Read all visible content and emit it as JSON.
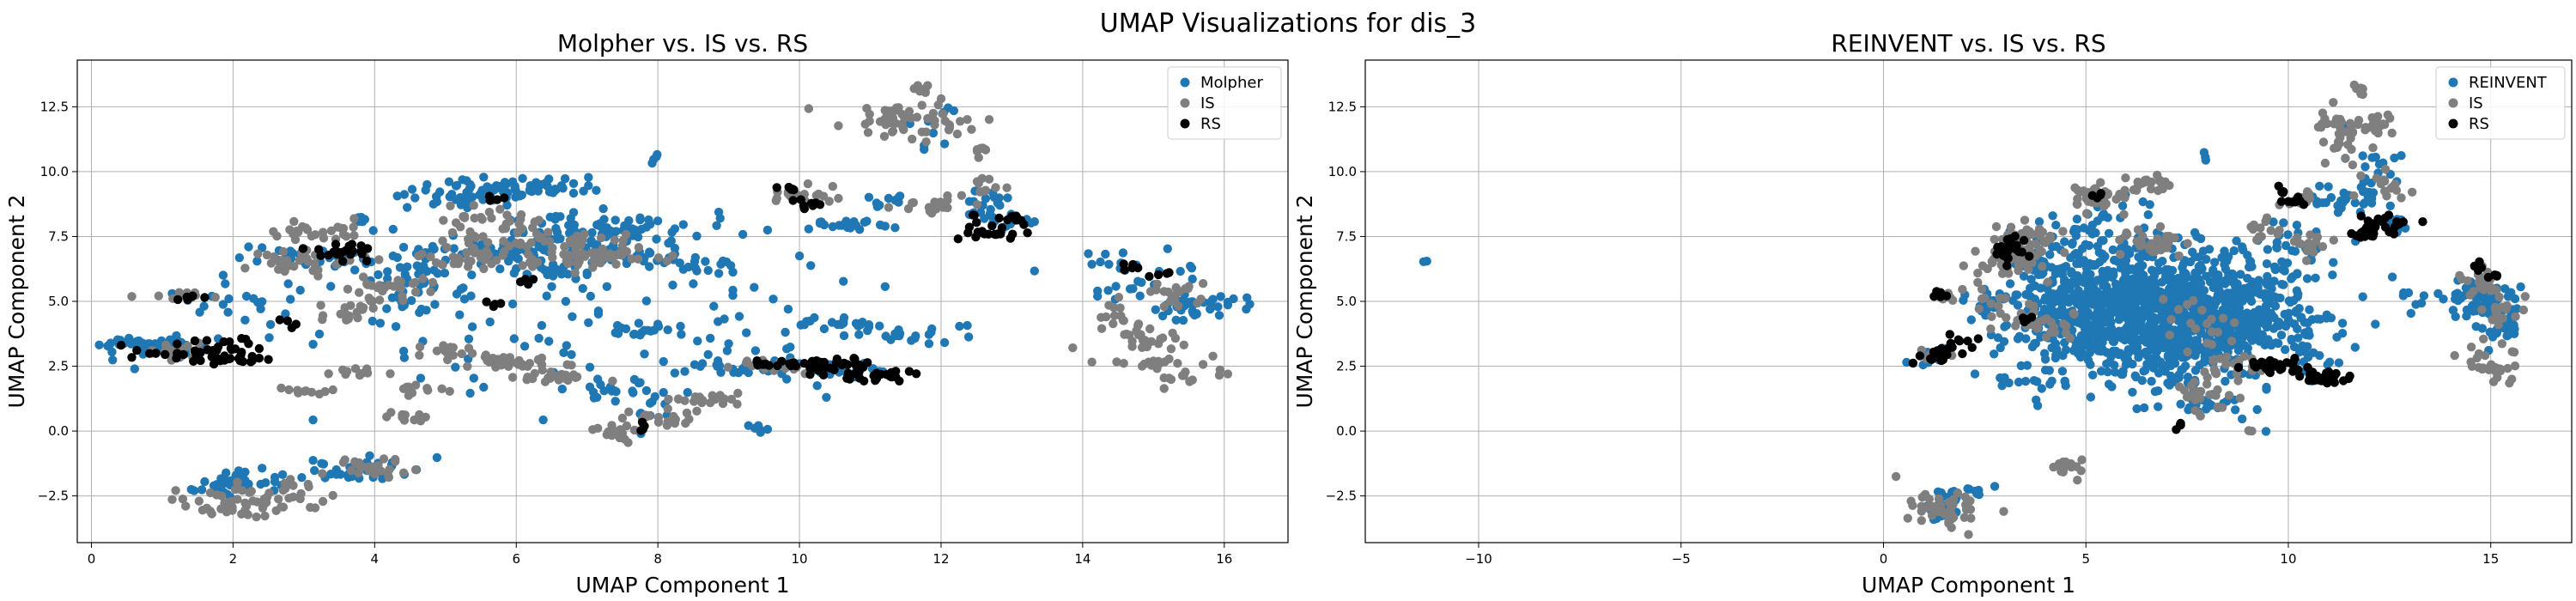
{
  "figure": {
    "title": "UMAP Visualizations for dis_3"
  },
  "chart_data": [
    {
      "type": "scatter",
      "title": "Molpher vs. IS vs. RS",
      "xlabel": "UMAP Component 1",
      "ylabel": "UMAP Component 2",
      "xlim": [
        -0.2,
        16.9
      ],
      "ylim": [
        -4.3,
        14.3
      ],
      "xticks": [
        0,
        2,
        4,
        6,
        8,
        10,
        12,
        14,
        16
      ],
      "yticks": [
        -2.5,
        0.0,
        2.5,
        5.0,
        7.5,
        10.0,
        12.5
      ],
      "grid": true,
      "legend": "top-right",
      "series": [
        {
          "name": "Molpher",
          "color": "#1f77b4",
          "points": []
        },
        {
          "name": "IS",
          "color": "#7f7f7f",
          "points": []
        },
        {
          "name": "RS",
          "color": "#000000",
          "points": []
        }
      ],
      "clusters": {
        "Molpher": [
          [
            0.9,
            3.3,
            0.35,
            0.18,
            60
          ],
          [
            1.9,
            -2.1,
            0.3,
            0.25,
            40
          ],
          [
            3.0,
            6.7,
            0.5,
            0.2,
            35
          ],
          [
            3.8,
            -1.5,
            0.4,
            0.2,
            40
          ],
          [
            5.5,
            9.2,
            0.6,
            0.25,
            60
          ],
          [
            6.3,
            9.4,
            0.4,
            0.2,
            30
          ],
          [
            6.0,
            7.0,
            0.6,
            0.25,
            60
          ],
          [
            7.1,
            7.8,
            0.7,
            0.3,
            70
          ],
          [
            7.6,
            6.9,
            0.4,
            0.2,
            25
          ],
          [
            6.5,
            6.2,
            0.3,
            0.2,
            20
          ],
          [
            4.5,
            6.5,
            0.3,
            0.3,
            20
          ],
          [
            8.0,
            10.5,
            0.05,
            0.1,
            4
          ],
          [
            8.4,
            6.4,
            0.3,
            0.15,
            18
          ],
          [
            7.8,
            3.8,
            0.3,
            0.2,
            15
          ],
          [
            7.4,
            1.8,
            0.2,
            0.4,
            15
          ],
          [
            8.0,
            1.1,
            0.2,
            0.4,
            12
          ],
          [
            9.0,
            2.4,
            0.4,
            0.15,
            20
          ],
          [
            9.4,
            0.1,
            0.1,
            0.1,
            6
          ],
          [
            10.6,
            2.4,
            0.4,
            0.15,
            25
          ],
          [
            10.5,
            4.1,
            0.3,
            0.1,
            15
          ],
          [
            10.7,
            7.9,
            0.4,
            0.15,
            20
          ],
          [
            11.3,
            8.9,
            0.2,
            0.15,
            10
          ],
          [
            11.4,
            3.8,
            0.4,
            0.2,
            25
          ],
          [
            12.6,
            8.9,
            0.2,
            0.3,
            14
          ],
          [
            12.9,
            8.1,
            0.3,
            0.2,
            20
          ],
          [
            14.7,
            5.8,
            0.5,
            0.5,
            30
          ],
          [
            15.5,
            4.7,
            0.3,
            0.3,
            25
          ],
          [
            16.0,
            5.0,
            0.15,
            0.15,
            10
          ],
          [
            5.0,
            4.5,
            2.0,
            2.0,
            90
          ],
          [
            9.2,
            4.0,
            1.2,
            1.5,
            45
          ],
          [
            2.2,
            4.9,
            0.6,
            0.2,
            12
          ],
          [
            3.9,
            8.0,
            0.2,
            0.2,
            8
          ],
          [
            4.7,
            5.5,
            0.5,
            0.5,
            25
          ],
          [
            11.9,
            11.5,
            0.2,
            0.6,
            10
          ]
        ],
        "IS": [
          [
            1.1,
            3.1,
            0.2,
            0.15,
            20
          ],
          [
            1.3,
            5.2,
            0.25,
            0.1,
            10
          ],
          [
            2.2,
            -2.8,
            0.5,
            0.3,
            50
          ],
          [
            3.0,
            6.5,
            0.4,
            0.2,
            35
          ],
          [
            3.2,
            7.7,
            0.4,
            0.2,
            25
          ],
          [
            3.6,
            4.6,
            0.3,
            0.2,
            15
          ],
          [
            4.0,
            -1.4,
            0.4,
            0.2,
            25
          ],
          [
            4.2,
            5.5,
            0.4,
            0.3,
            30
          ],
          [
            4.4,
            0.6,
            0.2,
            0.1,
            10
          ],
          [
            4.6,
            1.6,
            0.2,
            0.1,
            10
          ],
          [
            3.7,
            2.3,
            0.2,
            0.1,
            10
          ],
          [
            3.1,
            1.5,
            0.3,
            0.1,
            10
          ],
          [
            5.0,
            3.0,
            0.3,
            0.15,
            15
          ],
          [
            5.4,
            6.8,
            0.4,
            0.3,
            40
          ],
          [
            5.7,
            8.1,
            0.4,
            0.25,
            30
          ],
          [
            6.1,
            2.6,
            0.4,
            0.15,
            30
          ],
          [
            6.6,
            2.1,
            0.3,
            0.15,
            25
          ],
          [
            6.8,
            7.1,
            0.6,
            0.3,
            50
          ],
          [
            7.1,
            6.6,
            0.4,
            0.2,
            30
          ],
          [
            7.5,
            -0.1,
            0.2,
            0.2,
            15
          ],
          [
            8.1,
            0.5,
            0.3,
            0.15,
            20
          ],
          [
            8.6,
            1.2,
            0.3,
            0.15,
            20
          ],
          [
            9.7,
            2.6,
            0.3,
            0.15,
            20
          ],
          [
            10.1,
            9.1,
            0.3,
            0.2,
            20
          ],
          [
            11.4,
            12.0,
            0.4,
            0.3,
            45
          ],
          [
            11.8,
            13.2,
            0.1,
            0.1,
            6
          ],
          [
            12.2,
            11.9,
            0.2,
            0.15,
            10
          ],
          [
            11.8,
            8.7,
            0.3,
            0.2,
            20
          ],
          [
            12.6,
            10.8,
            0.15,
            0.15,
            8
          ],
          [
            12.6,
            9.4,
            0.2,
            0.2,
            10
          ],
          [
            14.5,
            4.5,
            0.2,
            0.3,
            15
          ],
          [
            14.8,
            3.5,
            0.3,
            0.3,
            20
          ],
          [
            15.3,
            5.3,
            0.3,
            0.3,
            20
          ],
          [
            15.4,
            2.2,
            0.3,
            0.4,
            20
          ],
          [
            14.9,
            2.6,
            0.2,
            0.1,
            12
          ],
          [
            2.6,
            -2.2,
            0.3,
            0.2,
            15
          ]
        ],
        "RS": [
          [
            1.2,
            3.0,
            0.3,
            0.15,
            20
          ],
          [
            1.4,
            5.2,
            0.15,
            0.1,
            6
          ],
          [
            1.8,
            3.3,
            0.25,
            0.2,
            15
          ],
          [
            2.0,
            2.8,
            0.3,
            0.1,
            20
          ],
          [
            2.8,
            4.2,
            0.1,
            0.1,
            4
          ],
          [
            3.6,
            6.9,
            0.2,
            0.2,
            25
          ],
          [
            5.8,
            9.1,
            0.1,
            0.1,
            4
          ],
          [
            6.2,
            5.8,
            0.1,
            0.1,
            4
          ],
          [
            5.7,
            4.9,
            0.1,
            0.1,
            4
          ],
          [
            7.8,
            0.2,
            0.1,
            0.1,
            4
          ],
          [
            9.5,
            2.6,
            0.1,
            0.1,
            6
          ],
          [
            10.2,
            2.6,
            0.4,
            0.12,
            35
          ],
          [
            11.0,
            2.1,
            0.35,
            0.12,
            30
          ],
          [
            10.1,
            8.8,
            0.15,
            0.15,
            8
          ],
          [
            9.9,
            9.3,
            0.1,
            0.1,
            5
          ],
          [
            12.6,
            7.6,
            0.25,
            0.1,
            15
          ],
          [
            12.9,
            8.1,
            0.25,
            0.15,
            15
          ],
          [
            14.7,
            6.4,
            0.1,
            0.1,
            5
          ],
          [
            15.1,
            6.1,
            0.1,
            0.1,
            4
          ]
        ]
      }
    },
    {
      "type": "scatter",
      "title": "REINVENT vs. IS vs. RS",
      "xlabel": "UMAP Component 1",
      "ylabel": "UMAP Component 2",
      "xlim": [
        -12.8,
        17.0
      ],
      "ylim": [
        -4.3,
        14.3
      ],
      "xticks": [
        -10,
        -5,
        0,
        5,
        10,
        15
      ],
      "yticks": [
        -2.5,
        0.0,
        2.5,
        5.0,
        7.5,
        10.0,
        12.5
      ],
      "grid": true,
      "legend": "top-right",
      "series": [
        {
          "name": "REINVENT",
          "color": "#1f77b4",
          "points": []
        },
        {
          "name": "IS",
          "color": "#7f7f7f",
          "points": []
        },
        {
          "name": "RS",
          "color": "#000000",
          "points": []
        }
      ],
      "clusters": {
        "REINVENT": [
          [
            6.8,
            4.6,
            1.6,
            1.1,
            900
          ],
          [
            5.5,
            5.5,
            1.0,
            1.0,
            120
          ],
          [
            8.5,
            4.5,
            1.2,
            1.2,
            120
          ],
          [
            7.0,
            3.0,
            1.2,
            1.0,
            100
          ],
          [
            4.3,
            4.2,
            0.8,
            0.8,
            60
          ],
          [
            9.8,
            5.8,
            0.8,
            0.8,
            40
          ],
          [
            10.5,
            3.5,
            0.5,
            0.8,
            25
          ],
          [
            14.6,
            5.0,
            0.5,
            0.4,
            60
          ],
          [
            15.2,
            4.2,
            0.3,
            0.4,
            25
          ],
          [
            11.3,
            8.9,
            0.4,
            0.25,
            25
          ],
          [
            12.0,
            10.0,
            0.5,
            0.8,
            25
          ],
          [
            12.7,
            8.0,
            0.2,
            0.15,
            10
          ],
          [
            1.5,
            -2.8,
            0.3,
            0.4,
            20
          ],
          [
            2.3,
            -2.4,
            0.3,
            0.2,
            10
          ],
          [
            1.2,
            3.0,
            0.2,
            0.2,
            10
          ],
          [
            3.6,
            6.4,
            0.4,
            0.3,
            20
          ],
          [
            5.0,
            7.8,
            0.8,
            0.6,
            40
          ],
          [
            8.0,
            10.5,
            0.05,
            0.1,
            3
          ],
          [
            -11.3,
            6.5,
            0.05,
            0.05,
            2
          ],
          [
            2.6,
            5.0,
            0.4,
            0.4,
            15
          ],
          [
            8.0,
            1.0,
            0.3,
            0.4,
            15
          ],
          [
            3.5,
            2.0,
            0.4,
            0.4,
            15
          ],
          [
            9.9,
            7.5,
            0.3,
            0.3,
            15
          ],
          [
            13.1,
            5.0,
            0.2,
            0.2,
            6
          ]
        ],
        "IS": [
          [
            1.5,
            -3.0,
            0.5,
            0.4,
            45
          ],
          [
            1.4,
            3.0,
            0.25,
            0.15,
            15
          ],
          [
            1.6,
            5.2,
            0.2,
            0.1,
            8
          ],
          [
            3.1,
            6.6,
            0.5,
            0.4,
            50
          ],
          [
            3.5,
            7.6,
            0.4,
            0.3,
            30
          ],
          [
            4.5,
            -1.4,
            0.3,
            0.2,
            15
          ],
          [
            5.3,
            8.9,
            0.4,
            0.3,
            35
          ],
          [
            6.5,
            9.5,
            0.3,
            0.2,
            20
          ],
          [
            6.8,
            7.3,
            0.5,
            0.3,
            30
          ],
          [
            7.8,
            1.3,
            0.4,
            0.3,
            25
          ],
          [
            8.6,
            2.5,
            0.4,
            0.2,
            20
          ],
          [
            9.4,
            7.8,
            0.2,
            0.2,
            12
          ],
          [
            10.2,
            9.0,
            0.2,
            0.2,
            10
          ],
          [
            10.5,
            7.2,
            0.3,
            0.3,
            15
          ],
          [
            11.3,
            11.4,
            0.4,
            0.6,
            40
          ],
          [
            11.8,
            13.2,
            0.1,
            0.15,
            8
          ],
          [
            12.2,
            11.9,
            0.2,
            0.2,
            12
          ],
          [
            12.5,
            9.4,
            0.3,
            0.3,
            15
          ],
          [
            14.7,
            5.8,
            0.3,
            0.3,
            20
          ],
          [
            15.3,
            4.8,
            0.3,
            0.3,
            20
          ],
          [
            15.1,
            2.6,
            0.4,
            0.4,
            30
          ],
          [
            3.6,
            4.4,
            0.3,
            0.3,
            15
          ],
          [
            2.7,
            5.0,
            0.3,
            0.3,
            10
          ],
          [
            4.2,
            4.2,
            0.3,
            0.3,
            15
          ],
          [
            7.8,
            4.0,
            0.6,
            0.6,
            20
          ],
          [
            9.0,
            0.0,
            0.1,
            0.1,
            3
          ]
        ],
        "RS": [
          [
            1.3,
            2.9,
            0.3,
            0.15,
            20
          ],
          [
            1.8,
            3.4,
            0.2,
            0.15,
            10
          ],
          [
            1.4,
            5.2,
            0.15,
            0.1,
            6
          ],
          [
            3.2,
            7.0,
            0.25,
            0.25,
            25
          ],
          [
            3.5,
            4.3,
            0.1,
            0.1,
            4
          ],
          [
            5.3,
            9.1,
            0.1,
            0.1,
            4
          ],
          [
            7.4,
            0.2,
            0.1,
            0.1,
            4
          ],
          [
            9.8,
            2.5,
            0.4,
            0.12,
            30
          ],
          [
            11.0,
            2.1,
            0.35,
            0.12,
            30
          ],
          [
            10.2,
            8.9,
            0.15,
            0.15,
            8
          ],
          [
            9.8,
            9.3,
            0.1,
            0.1,
            4
          ],
          [
            12.0,
            7.6,
            0.25,
            0.1,
            15
          ],
          [
            12.4,
            8.1,
            0.3,
            0.15,
            15
          ],
          [
            14.7,
            6.4,
            0.1,
            0.1,
            5
          ],
          [
            15.1,
            6.0,
            0.1,
            0.1,
            4
          ]
        ]
      }
    }
  ]
}
